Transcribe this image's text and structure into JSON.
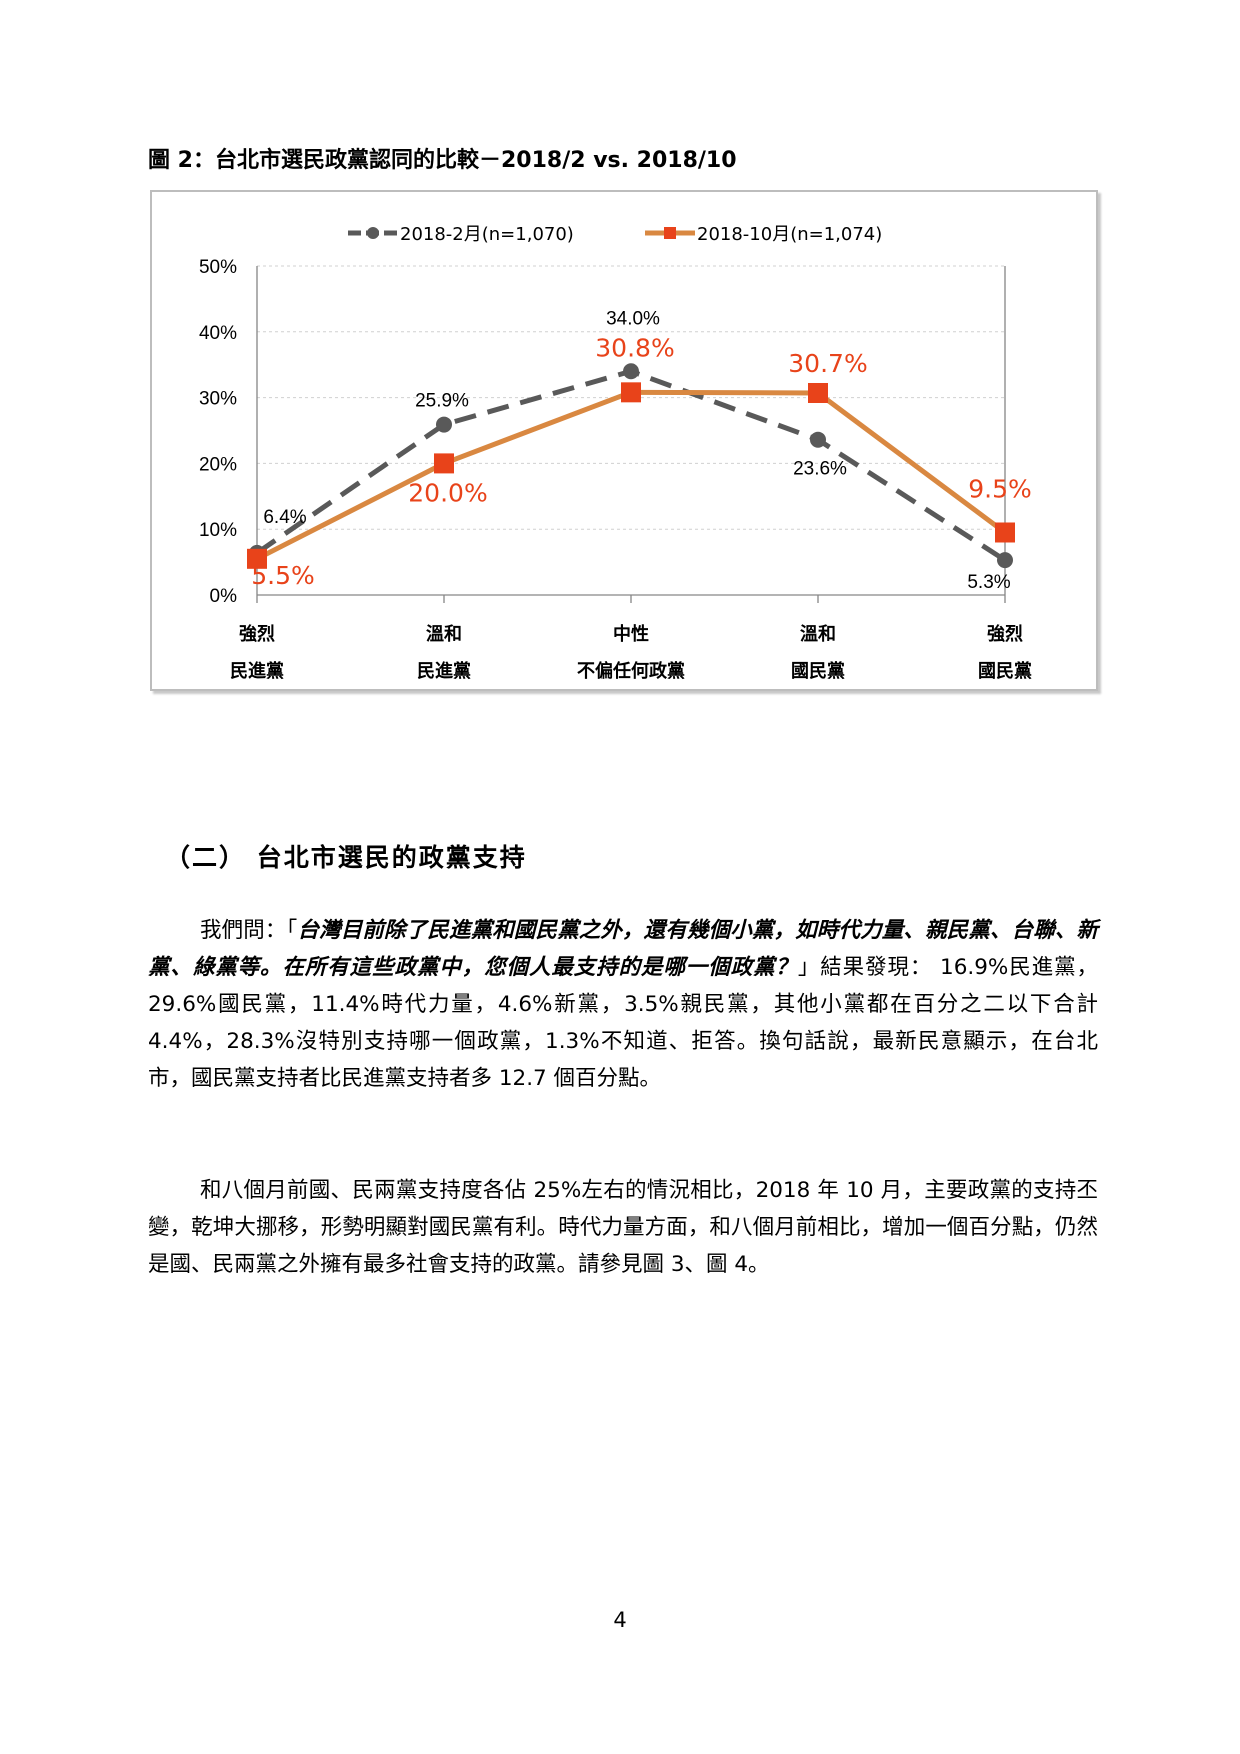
{
  "figure": {
    "caption": "圖 2：台北市選民政黨認同的比較－2018/2 vs. 2018/10"
  },
  "chart_data": {
    "type": "line",
    "title": "",
    "xlabel": "",
    "ylabel": "",
    "ylim": [
      0,
      50
    ],
    "yticks": [
      "0%",
      "10%",
      "20%",
      "30%",
      "40%",
      "50%"
    ],
    "grid": true,
    "legend": "top",
    "categories": [
      [
        "強烈",
        "民進黨"
      ],
      [
        "溫和",
        "民進黨"
      ],
      [
        "中性",
        "不偏任何政黨"
      ],
      [
        "溫和",
        "國民黨"
      ],
      [
        "強烈",
        "國民黨"
      ]
    ],
    "series": [
      {
        "name": "2018-2月(n=1,070)",
        "values": [
          6.4,
          25.9,
          34.0,
          23.6,
          5.3
        ],
        "labels": [
          "6.4%",
          "25.9%",
          "34.0%",
          "23.6%",
          "5.3%"
        ],
        "color": "#595959",
        "dashed": true,
        "marker": "circle"
      },
      {
        "name": "2018-10月(n=1,074)",
        "values": [
          5.5,
          20.0,
          30.8,
          30.7,
          9.5
        ],
        "labels": [
          "5.5%",
          "20.0%",
          "30.8%",
          "30.7%",
          "9.5%"
        ],
        "color": "#d98841",
        "label_color": "#e8431a",
        "dashed": false,
        "marker": "square"
      }
    ]
  },
  "section": {
    "heading": "（二） 台北市選民的政黨支持"
  },
  "paragraph1": {
    "lead": "我們問：「",
    "question": "台灣目前除了民進黨和國民黨之外，還有幾個小黨，如時代力量、親民黨、台聯、新黨、綠黨等。在所有這些政黨中，您個人最支持的是哪一個政黨？",
    "rest": "」結果發現： 16.9%民進黨，29.6%國民黨，11.4%時代力量，4.6%新黨，3.5%親民黨，其他小黨都在百分之二以下合計 4.4%，28.3%沒特別支持哪一個政黨，1.3%不知道、拒答。換句話說，最新民意顯示，在台北市，國民黨支持者比民進黨支持者多 12.7 個百分點。"
  },
  "paragraph2": {
    "text": "和八個月前國、民兩黨支持度各佔 25%左右的情況相比，2018 年 10 月，主要政黨的支持丕變，乾坤大挪移，形勢明顯對國民黨有利。時代力量方面，和八個月前相比，增加一個百分點，仍然是國、民兩黨之外擁有最多社會支持的政黨。請參見圖 3、圖 4。"
  },
  "footer": {
    "page_number": "4"
  }
}
